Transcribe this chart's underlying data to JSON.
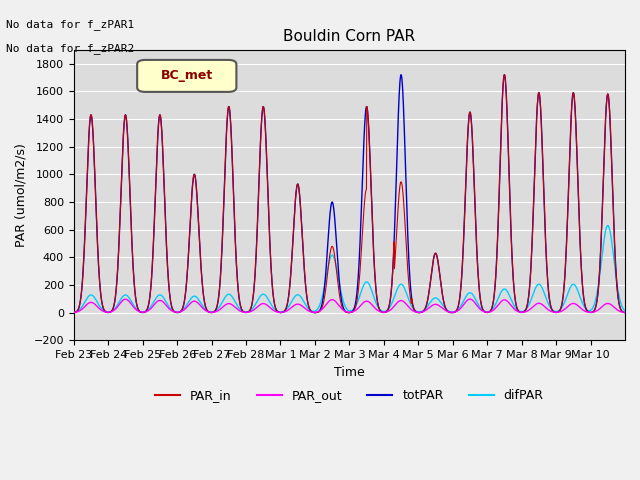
{
  "title": "Bouldin Corn PAR",
  "xlabel": "Time",
  "ylabel": "PAR (umol/m2/s)",
  "ylim": [
    -200,
    1900
  ],
  "yticks": [
    -200,
    0,
    200,
    400,
    600,
    800,
    1000,
    1200,
    1400,
    1600,
    1800
  ],
  "bg_color": "#dcdcdc",
  "text_annotations": [
    "No data for f_zPAR1",
    "No data for f_zPAR2"
  ],
  "legend_label": "BC_met",
  "colors": {
    "PAR_in": "#cc0000",
    "PAR_out": "#ff00ff",
    "totPAR": "#0000cc",
    "difPAR": "#00ccff"
  },
  "legend_entries": [
    "PAR_in",
    "PAR_out",
    "totPAR",
    "difPAR"
  ],
  "x_tick_labels": [
    "Feb 23",
    "Feb 24",
    "Feb 25",
    "Feb 26",
    "Feb 27",
    "Feb 28",
    "Mar 1",
    "Mar 2",
    "Mar 3",
    "Mar 4",
    "Mar 5",
    "Mar 6",
    "Mar 7",
    "Mar 8",
    "Mar 9",
    "Mar 10"
  ],
  "num_days": 16,
  "points_per_day": 96
}
